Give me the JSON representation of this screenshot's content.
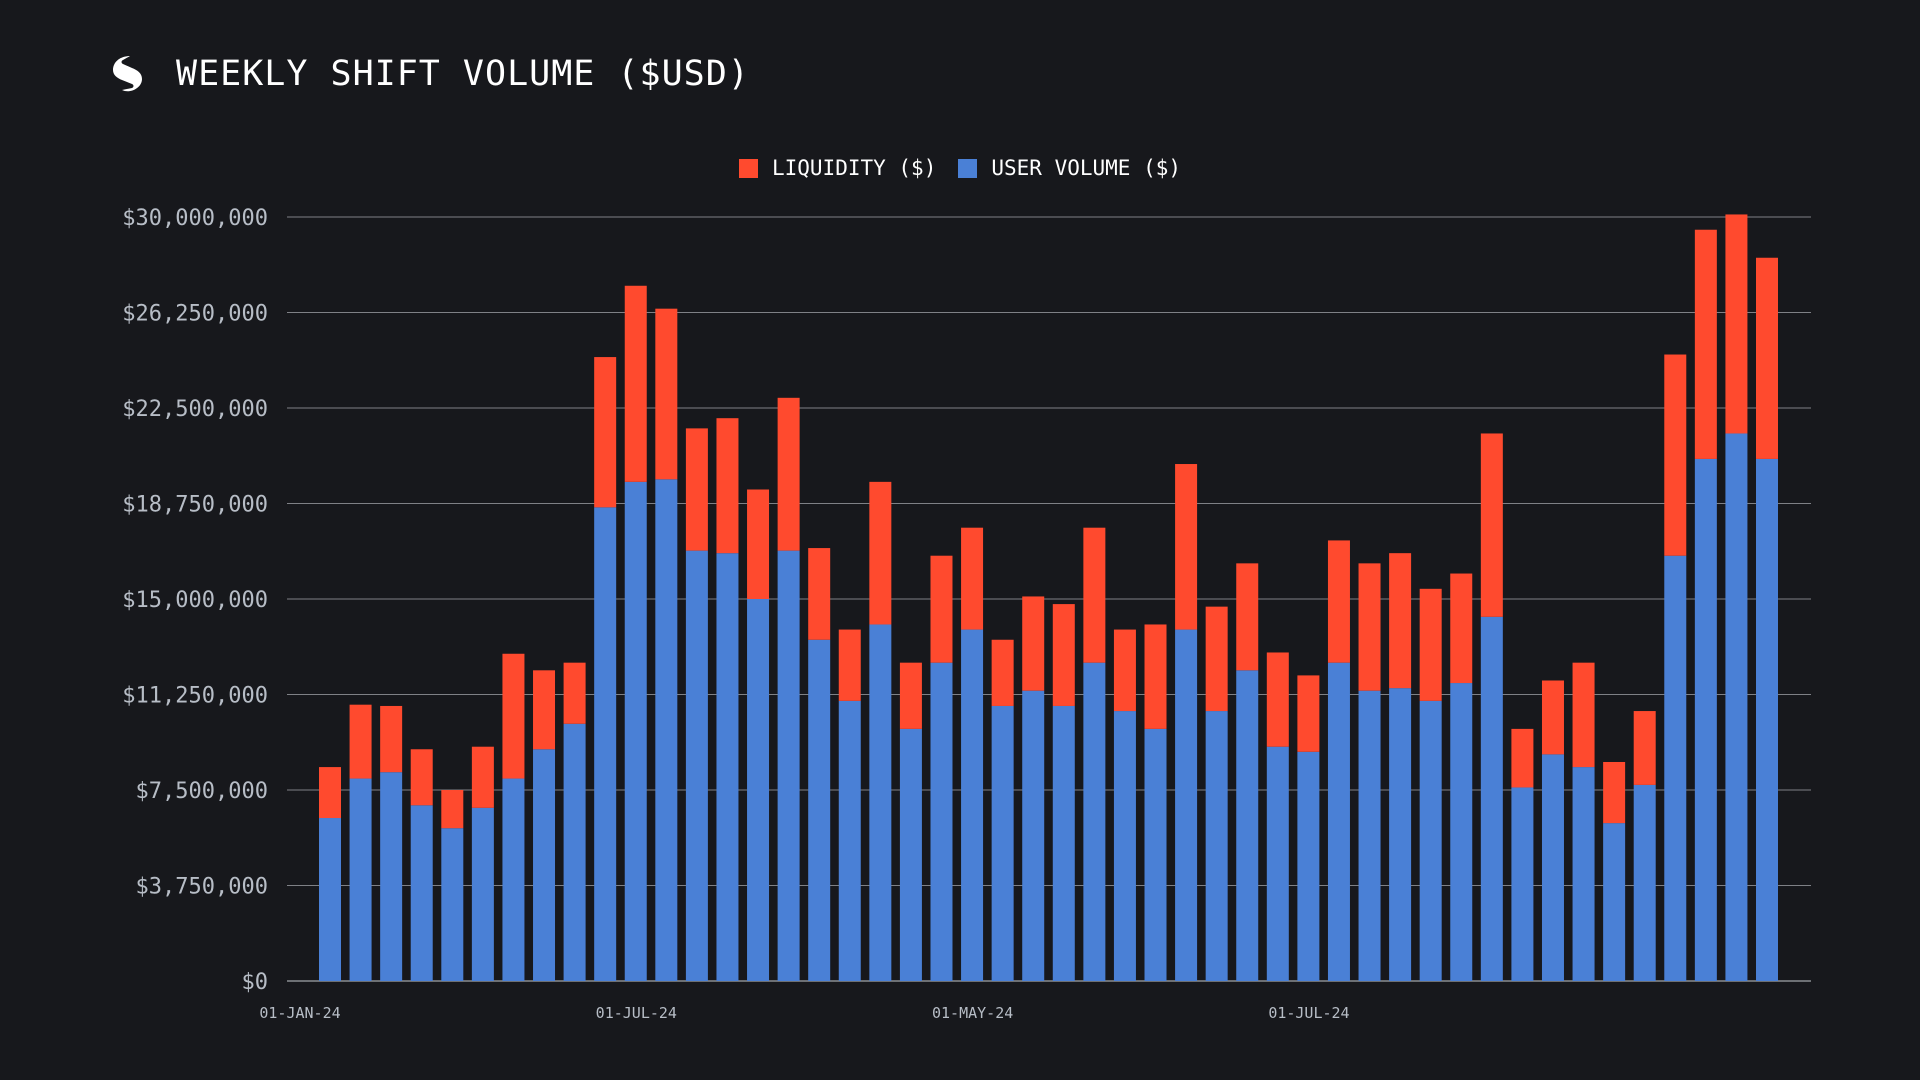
{
  "header": {
    "title": "WEEKLY SHIFT VOLUME ($USD)",
    "logo_icon": "sideshift-logo-icon"
  },
  "colors": {
    "background": "#17181c",
    "liquidity": "#ff4a2e",
    "user_volume": "#4a80d6",
    "grid": "#d0d4da",
    "tick_text": "#b7bdc6"
  },
  "chart_data": {
    "type": "bar",
    "stacked": true,
    "title": "WEEKLY SHIFT VOLUME ($USD)",
    "legend_position": "top-center",
    "grid": true,
    "ylim": [
      0,
      30000000
    ],
    "yticks": [
      {
        "value": 0,
        "label": "$0"
      },
      {
        "value": 3750000,
        "label": "$3,750,000"
      },
      {
        "value": 7500000,
        "label": "$7,500,000"
      },
      {
        "value": 11250000,
        "label": "$11,250,000"
      },
      {
        "value": 15000000,
        "label": "$15,000,000"
      },
      {
        "value": 18750000,
        "label": "$18,750,000"
      },
      {
        "value": 22500000,
        "label": "$22,500,000"
      },
      {
        "value": 26250000,
        "label": "$26,250,000"
      },
      {
        "value": 30000000,
        "label": "$30,000,000"
      }
    ],
    "xticks": [
      {
        "index": 0,
        "label": "01-JAN-24"
      },
      {
        "index": 11,
        "label": "01-JUL-24"
      },
      {
        "index": 22,
        "label": "01-MAY-24"
      },
      {
        "index": 33,
        "label": "01-JUL-24"
      }
    ],
    "series": [
      {
        "name": "USER VOLUME ($)",
        "color": "#4a80d6",
        "values": [
          6400000,
          7950000,
          8200000,
          6900000,
          6000000,
          6800000,
          7950000,
          9100000,
          10100000,
          18600000,
          19600000,
          19700000,
          16900000,
          16800000,
          15000000,
          16900000,
          13400000,
          11000000,
          14000000,
          9900000,
          12500000,
          13800000,
          10800000,
          11400000,
          10800000,
          12500000,
          10600000,
          9900000,
          13800000,
          10600000,
          12200000,
          9200000,
          9000000,
          12500000,
          11400000,
          11500000,
          11000000,
          11700000,
          14300000,
          7600000,
          8900000,
          8400000,
          6200000,
          7700000,
          16700000,
          20500000,
          21500000,
          20500000
        ]
      },
      {
        "name": "LIQUIDITY ($)",
        "color": "#ff4a2e",
        "values": [
          2000000,
          2900000,
          2600000,
          2200000,
          1500000,
          2400000,
          4900000,
          3100000,
          2400000,
          5900000,
          7700000,
          6700000,
          4800000,
          5300000,
          4300000,
          6000000,
          3600000,
          2800000,
          5600000,
          2600000,
          4200000,
          4000000,
          2600000,
          3700000,
          4000000,
          5300000,
          3200000,
          4100000,
          6500000,
          4100000,
          4200000,
          3700000,
          3000000,
          4800000,
          5000000,
          5300000,
          4400000,
          4300000,
          7200000,
          2300000,
          2900000,
          4100000,
          2400000,
          2900000,
          7900000,
          9000000,
          8600000,
          7900000
        ]
      }
    ]
  },
  "legend": {
    "items": [
      {
        "label": "LIQUIDITY ($)",
        "color": "#ff4a2e"
      },
      {
        "label": "USER VOLUME ($)",
        "color": "#4a80d6"
      }
    ]
  }
}
